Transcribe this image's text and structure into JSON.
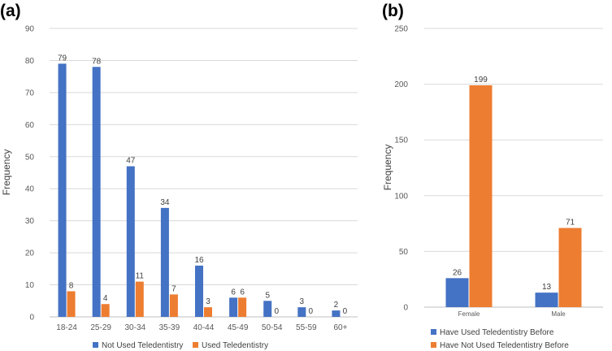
{
  "colors": {
    "blue": "#4472C4",
    "orange": "#ED7D31",
    "grid": "#D9D9D9",
    "axis": "#BFBFBF"
  },
  "chart_data": [
    {
      "panel": "(a)",
      "type": "bar",
      "ylabel": "Frequency",
      "ylim": [
        0,
        90
      ],
      "yticks": [
        0,
        10,
        20,
        30,
        40,
        50,
        60,
        70,
        80,
        90
      ],
      "categories": [
        "18-24",
        "25-29",
        "30-34",
        "35-39",
        "40-44",
        "45-49",
        "50-54",
        "55-59",
        "60+"
      ],
      "series": [
        {
          "name": "Not Used Teledentistry",
          "color": "#4472C4",
          "values": [
            79,
            78,
            47,
            34,
            16,
            6,
            5,
            3,
            2
          ]
        },
        {
          "name": "Used Teledentistry",
          "color": "#ED7D31",
          "values": [
            8,
            4,
            11,
            7,
            3,
            6,
            0,
            0,
            0
          ]
        }
      ],
      "legend": "bottom"
    },
    {
      "panel": "(b)",
      "type": "bar",
      "ylabel": "Frequency",
      "ylim": [
        0,
        250
      ],
      "yticks": [
        0,
        50,
        100,
        150,
        200,
        250
      ],
      "categories": [
        "Female",
        "Male"
      ],
      "series": [
        {
          "name": "Have Used Teledentistry Before",
          "color": "#4472C4",
          "values": [
            26,
            13
          ]
        },
        {
          "name": "Have Not Used Teledentistry Before",
          "color": "#ED7D31",
          "values": [
            199,
            71
          ]
        }
      ],
      "legend": "bottom"
    }
  ]
}
